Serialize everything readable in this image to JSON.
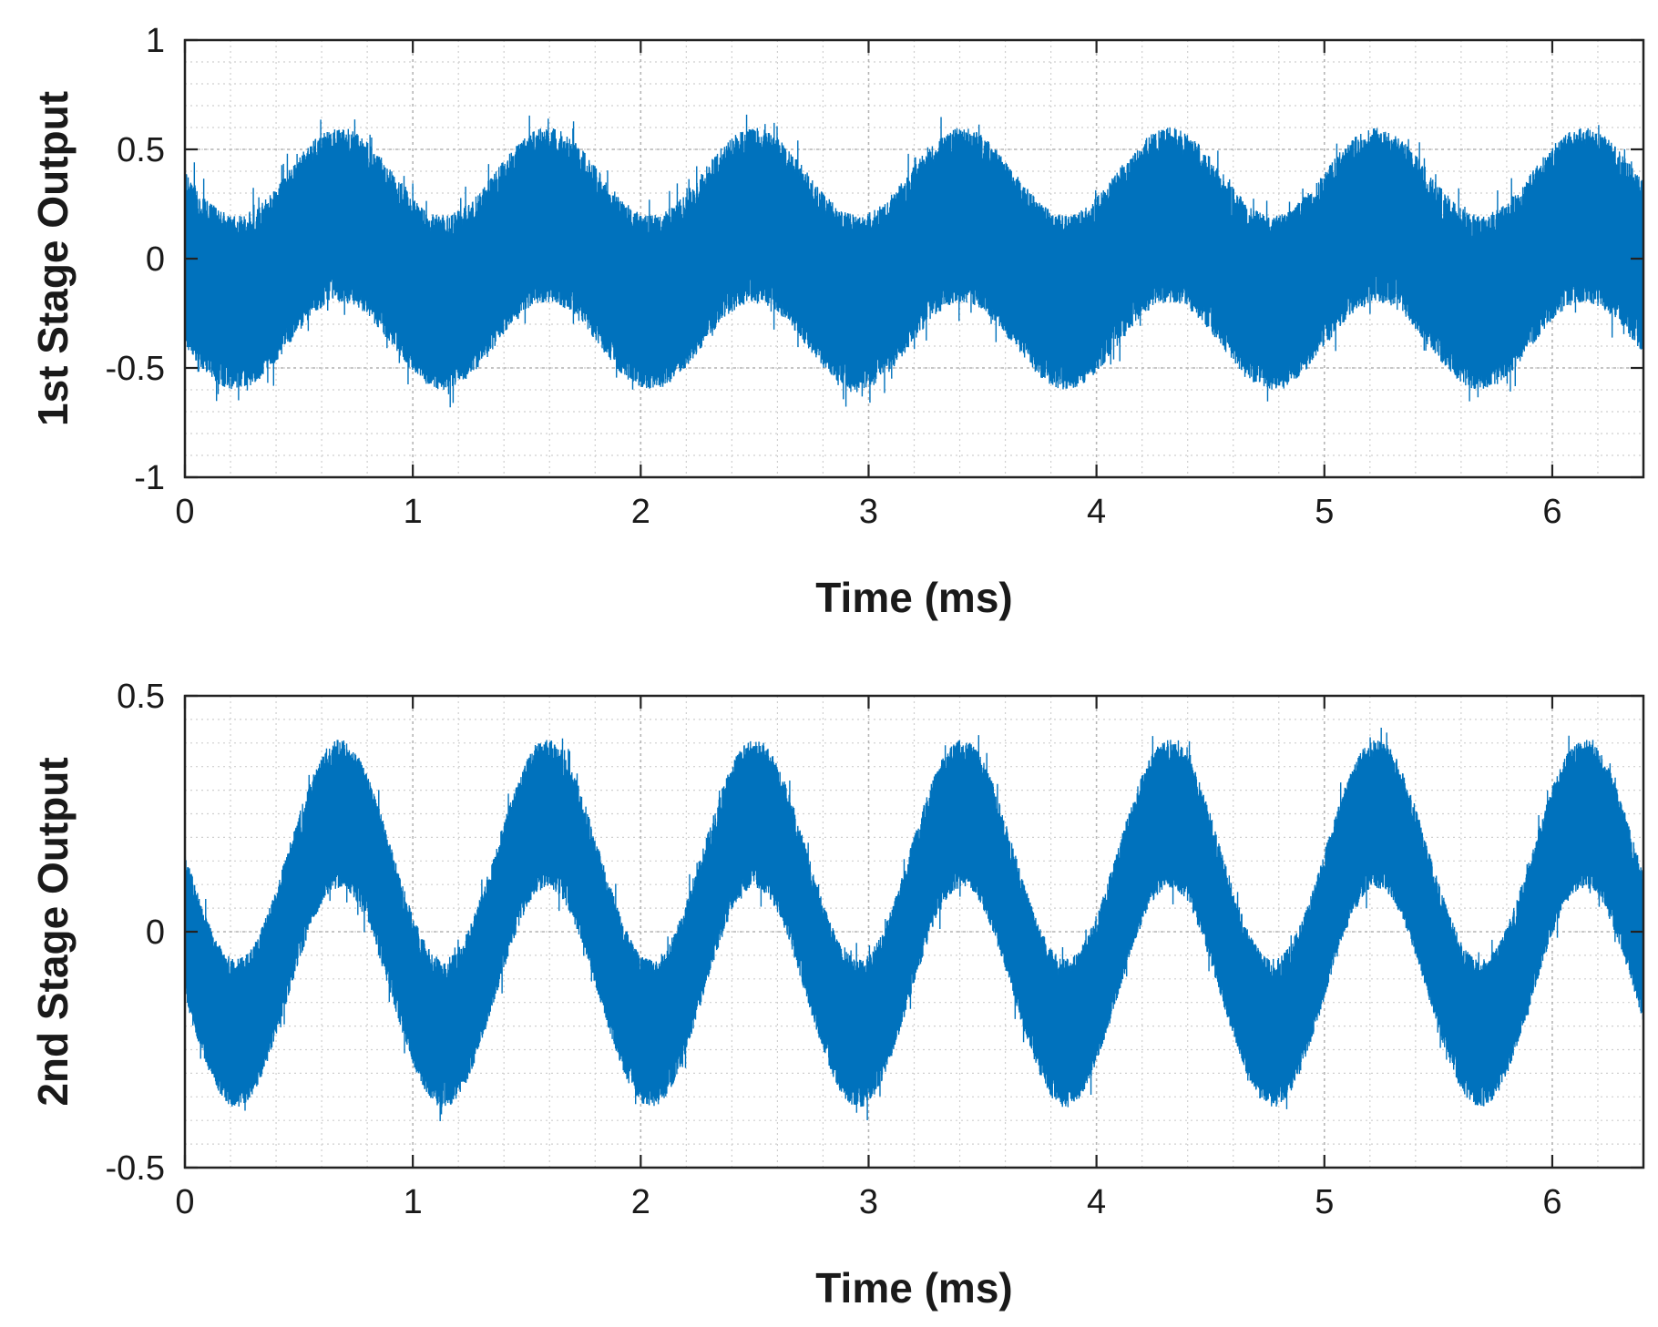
{
  "chart_data": [
    {
      "type": "line",
      "xlabel": "Time (ms)",
      "ylabel": "1st Stage Output",
      "xlim": [
        0,
        6.4
      ],
      "ylim": [
        -1,
        1
      ],
      "xticks": [
        0,
        1,
        2,
        3,
        4,
        5,
        6
      ],
      "xtick_labels": [
        "0",
        "1",
        "2",
        "3",
        "4",
        "5",
        "6"
      ],
      "yticks": [
        -1,
        -0.5,
        0,
        0.5,
        1
      ],
      "ytick_labels": [
        "-1",
        "-0.5",
        "0",
        "0.5",
        "1"
      ],
      "grid": true,
      "minor_grid": true,
      "line_color": "#0072BD",
      "signal": {
        "description_type": "noisy sinusoid",
        "period_ms": 0.91,
        "peak_times_ms": [
          0.68,
          1.6,
          2.5,
          3.42,
          4.32,
          5.22,
          6.15
        ],
        "trough_times_ms": [
          0.23,
          1.14,
          2.05,
          2.95,
          3.87,
          4.77,
          5.68
        ],
        "envelope_upper_at_peaks": 0.6,
        "envelope_lower_at_peaks": -0.2,
        "envelope_upper_at_troughs": 0.2,
        "envelope_lower_at_troughs": -0.6,
        "max_value": 0.68,
        "min_value": -0.68
      }
    },
    {
      "type": "line",
      "xlabel": "Time (ms)",
      "ylabel": "2nd Stage Output",
      "xlim": [
        0,
        6.4
      ],
      "ylim": [
        -0.5,
        0.5
      ],
      "xticks": [
        0,
        1,
        2,
        3,
        4,
        5,
        6
      ],
      "xtick_labels": [
        "0",
        "1",
        "2",
        "3",
        "4",
        "5",
        "6"
      ],
      "yticks": [
        -0.5,
        0,
        0.5
      ],
      "ytick_labels": [
        "-0.5",
        "0",
        "0.5"
      ],
      "grid": true,
      "minor_grid": true,
      "line_color": "#0072BD",
      "signal": {
        "description_type": "noisy sinusoid",
        "period_ms": 0.91,
        "peak_times_ms": [
          0.68,
          1.6,
          2.5,
          3.42,
          4.32,
          5.22,
          6.15
        ],
        "trough_times_ms": [
          0.23,
          1.14,
          2.05,
          2.95,
          3.87,
          4.77,
          5.68
        ],
        "envelope_upper_at_peaks": 0.4,
        "envelope_lower_at_peaks": 0.1,
        "envelope_upper_at_troughs": -0.05,
        "envelope_lower_at_troughs": -0.38,
        "max_value": 0.45,
        "min_value": -0.45
      }
    }
  ]
}
